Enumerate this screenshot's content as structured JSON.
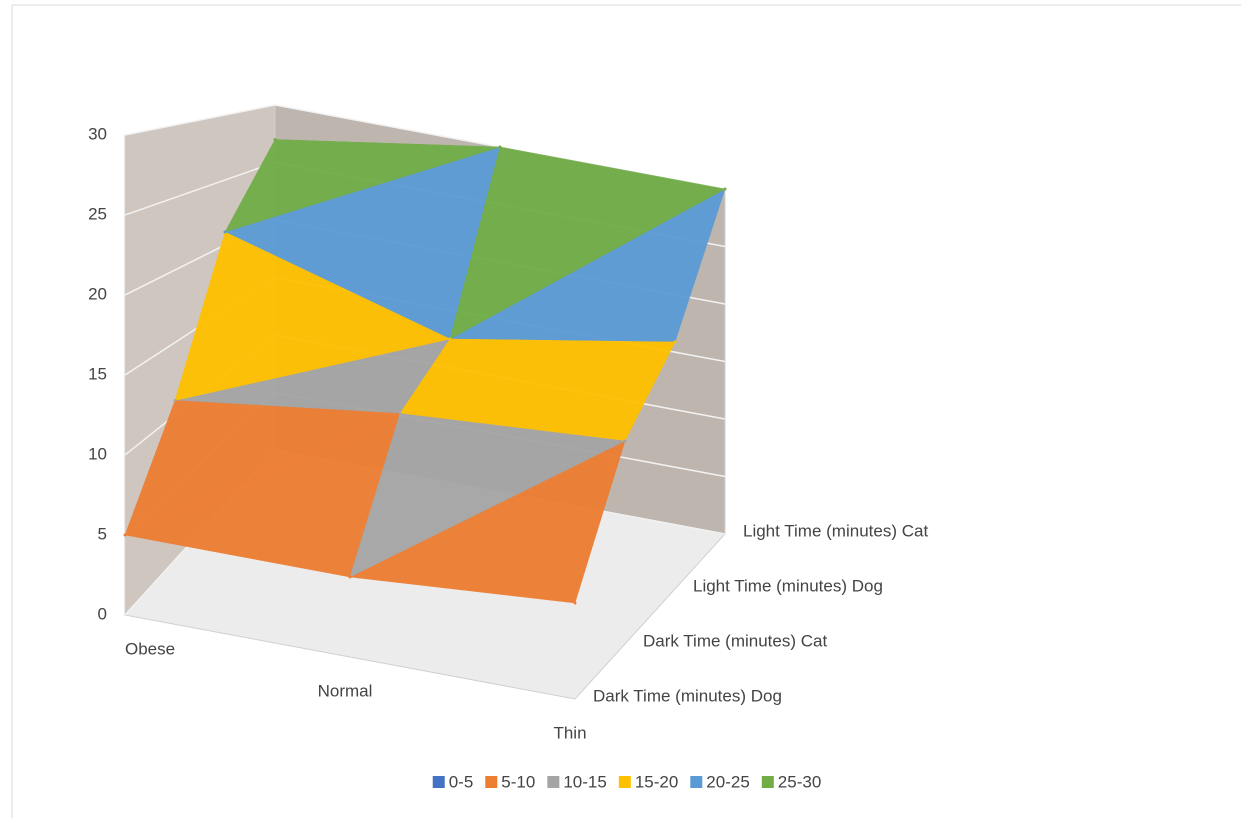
{
  "chart_data": {
    "type": "surface",
    "categories": [
      "Obese",
      "Normal",
      "Thin"
    ],
    "series": [
      {
        "name": "Dark Time (minutes) Dog",
        "values": [
          5,
          5,
          6
        ]
      },
      {
        "name": "Dark Time (minutes) Cat",
        "values": [
          11,
          13,
          14
        ]
      },
      {
        "name": "Light Time (minutes) Dog",
        "values": [
          21,
          16,
          19
        ]
      },
      {
        "name": "Light Time (minutes) Cat",
        "values": [
          27,
          30,
          30
        ]
      }
    ],
    "ylim": [
      0,
      30
    ],
    "yticks": [
      0,
      5,
      10,
      15,
      20,
      25,
      30
    ],
    "grid": true,
    "legend": {
      "position": "bottom",
      "items": [
        {
          "name": "0-5",
          "color": "#4472c4"
        },
        {
          "name": "5-10",
          "color": "#ed7d31"
        },
        {
          "name": "10-15",
          "color": "#a5a5a5"
        },
        {
          "name": "15-20",
          "color": "#ffc000"
        },
        {
          "name": "20-25",
          "color": "#5b9bd5"
        },
        {
          "name": "25-30",
          "color": "#70ad47"
        }
      ]
    }
  }
}
